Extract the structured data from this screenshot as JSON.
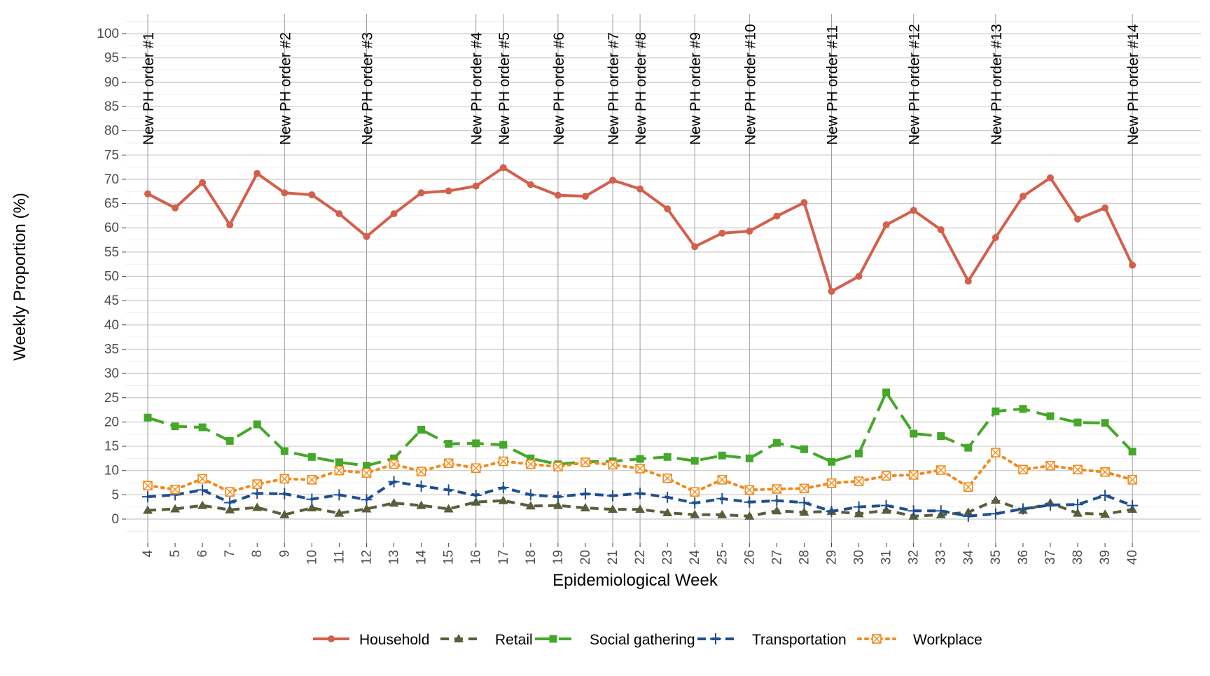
{
  "chart_data": {
    "type": "line",
    "title": "",
    "xlabel": "Epidemiological Week",
    "ylabel": "Weekly Proportion (%)",
    "ylim": [
      -5,
      105
    ],
    "yticks": [
      0,
      5,
      10,
      15,
      20,
      25,
      30,
      35,
      40,
      45,
      50,
      55,
      60,
      65,
      70,
      75,
      80,
      85,
      90,
      95,
      100
    ],
    "x": [
      4,
      5,
      6,
      7,
      8,
      9,
      10,
      11,
      12,
      13,
      14,
      15,
      16,
      17,
      18,
      19,
      20,
      21,
      22,
      23,
      24,
      25,
      26,
      27,
      28,
      29,
      30,
      31,
      32,
      33,
      34,
      35,
      36,
      37,
      38,
      39,
      40
    ],
    "grid": true,
    "legend_position": "bottom",
    "vlines": [
      {
        "week": 4,
        "label": "New PH order #1"
      },
      {
        "week": 9,
        "label": "New PH order #2"
      },
      {
        "week": 12,
        "label": "New PH order #3"
      },
      {
        "week": 16,
        "label": "New PH order #4"
      },
      {
        "week": 17,
        "label": "New PH order #5"
      },
      {
        "week": 19,
        "label": "New PH order #6"
      },
      {
        "week": 21,
        "label": "New PH order #7"
      },
      {
        "week": 22,
        "label": "New PH order #8"
      },
      {
        "week": 24,
        "label": "New PH order #9"
      },
      {
        "week": 26,
        "label": "New PH order #10"
      },
      {
        "week": 29,
        "label": "New PH order #11"
      },
      {
        "week": 32,
        "label": "New PH order #12"
      },
      {
        "week": 35,
        "label": "New PH order #13"
      },
      {
        "week": 40,
        "label": "New PH order #14"
      }
    ],
    "series": [
      {
        "name": "Household",
        "color": "#d3604c",
        "dash": "solid",
        "marker": "circle",
        "values": [
          67.0,
          64.1,
          69.3,
          60.6,
          71.2,
          67.2,
          66.8,
          62.9,
          58.2,
          62.9,
          67.2,
          67.6,
          68.6,
          72.4,
          68.9,
          66.7,
          66.5,
          69.8,
          68.0,
          63.9,
          56.1,
          58.9,
          59.3,
          62.4,
          65.2,
          46.9,
          50.0,
          60.6,
          63.6,
          59.6,
          49.0,
          58.0,
          66.5,
          70.3,
          61.8,
          64.1,
          52.3
        ]
      },
      {
        "name": "Retail",
        "color": "#595e3b",
        "dash": "dashed",
        "marker": "triangle",
        "values": [
          1.8,
          2.1,
          2.8,
          1.9,
          2.4,
          0.9,
          2.3,
          1.2,
          2.1,
          3.3,
          2.8,
          2.1,
          3.5,
          3.8,
          2.7,
          2.8,
          2.3,
          2.0,
          2.0,
          1.3,
          0.9,
          0.9,
          0.6,
          1.7,
          1.4,
          1.6,
          1.1,
          1.8,
          0.6,
          0.9,
          1.4,
          3.9,
          1.8,
          3.3,
          1.2,
          1.0,
          2.0
        ]
      },
      {
        "name": "Social gathering",
        "color": "#44a829",
        "dash": "longdash",
        "marker": "square",
        "values": [
          20.9,
          19.1,
          18.9,
          16.1,
          19.5,
          14.0,
          12.8,
          11.7,
          11.0,
          12.5,
          18.4,
          15.5,
          15.6,
          15.3,
          12.5,
          11.3,
          11.8,
          11.9,
          12.4,
          12.8,
          12.0,
          13.1,
          12.5,
          15.7,
          14.4,
          11.8,
          13.5,
          26.1,
          17.6,
          17.1,
          14.7,
          22.2,
          22.7,
          21.2,
          19.9,
          19.8,
          13.9
        ]
      },
      {
        "name": "Transportation",
        "color": "#1f4f8e",
        "dash": "dashed",
        "marker": "plus",
        "values": [
          4.6,
          5.0,
          6.0,
          3.4,
          5.3,
          5.2,
          4.1,
          5.0,
          4.0,
          7.7,
          6.8,
          6.0,
          4.9,
          6.5,
          5.0,
          4.6,
          5.2,
          4.8,
          5.3,
          4.5,
          3.3,
          4.2,
          3.5,
          3.8,
          3.4,
          1.6,
          2.5,
          2.8,
          1.7,
          1.7,
          0.6,
          1.1,
          2.1,
          2.9,
          3.0,
          4.9,
          2.8
        ]
      },
      {
        "name": "Workplace",
        "color": "#f28a1b",
        "dash": "dotted",
        "marker": "boxx",
        "values": [
          6.9,
          6.1,
          8.3,
          5.6,
          7.2,
          8.3,
          8.1,
          10.0,
          9.5,
          11.3,
          9.8,
          11.5,
          10.5,
          11.9,
          11.3,
          10.8,
          11.7,
          11.2,
          10.4,
          8.4,
          5.6,
          8.1,
          6.0,
          6.2,
          6.3,
          7.4,
          7.8,
          8.9,
          9.1,
          10.1,
          6.6,
          13.7,
          10.2,
          11.0,
          10.2,
          9.7,
          8.1
        ]
      }
    ]
  }
}
